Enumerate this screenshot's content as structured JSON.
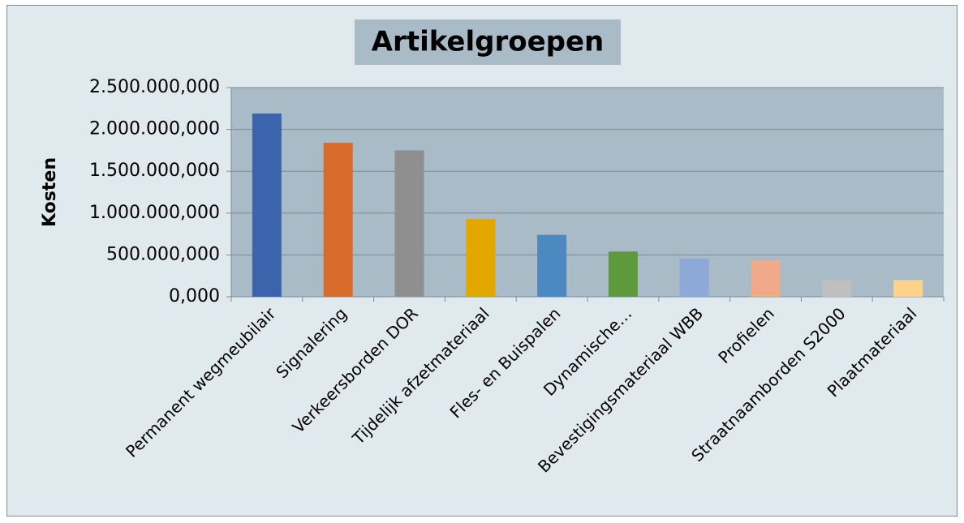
{
  "chart_data": {
    "type": "bar",
    "title": "Artikelgroepen",
    "y_label": "Kosten",
    "categories": [
      "Permanent wegmeubilair",
      "Signalering",
      "Verkeersborden DOR",
      "Tijdelijk afzetmateriaal",
      "Fles- en Buispalen",
      "Dynamische…",
      "Bevestigingsmateriaal WBB",
      "Profielen",
      "Straatnaamborden S2000",
      "Plaatmateriaal"
    ],
    "values": [
      2190000000,
      1840000000,
      1750000000,
      930000000,
      740000000,
      540000000,
      455000000,
      440000000,
      200000000,
      200000000
    ],
    "colors": [
      "#3b64ad",
      "#d86b2a",
      "#8f8f8f",
      "#e2a800",
      "#4c89c0",
      "#5e9a3c",
      "#8ea8d8",
      "#f0a98a",
      "#bfbfbf",
      "#fdd38a"
    ],
    "ylim": [
      0,
      2500000000
    ],
    "yticks": [
      {
        "value": 0,
        "label": "0,000"
      },
      {
        "value": 500000000,
        "label": "500.000,000"
      },
      {
        "value": 1000000000,
        "label": "1.000.000,000"
      },
      {
        "value": 1500000000,
        "label": "1.500.000,000"
      },
      {
        "value": 2000000000,
        "label": "2.000.000,000"
      },
      {
        "value": 2500000000,
        "label": "2.500.000,000"
      }
    ],
    "grid": true
  }
}
